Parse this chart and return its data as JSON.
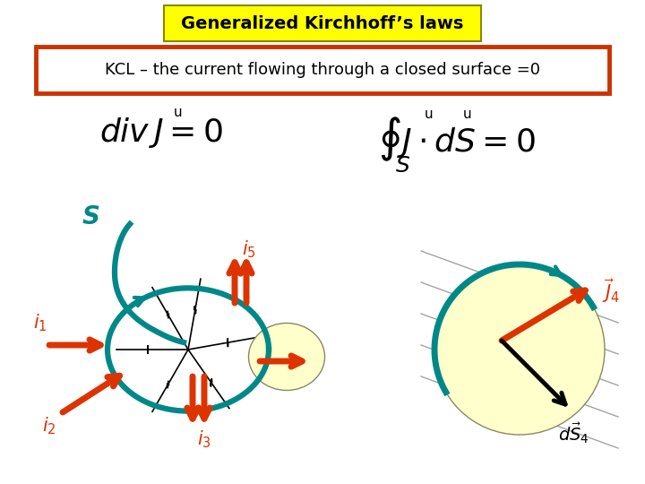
{
  "title": "Generalized Kirchhoff’s laws",
  "title_bg": "#FFFF00",
  "subtitle": "KCL – the current flowing through a closed surface =0",
  "subtitle_box_color": "#CC3300",
  "bg_color": "#FFFFFF",
  "teal_color": "#008888",
  "red_color": "#DD3300",
  "yellow_fill": "#FFFFCC",
  "fig_w": 7.2,
  "fig_h": 5.4,
  "dpi": 100
}
